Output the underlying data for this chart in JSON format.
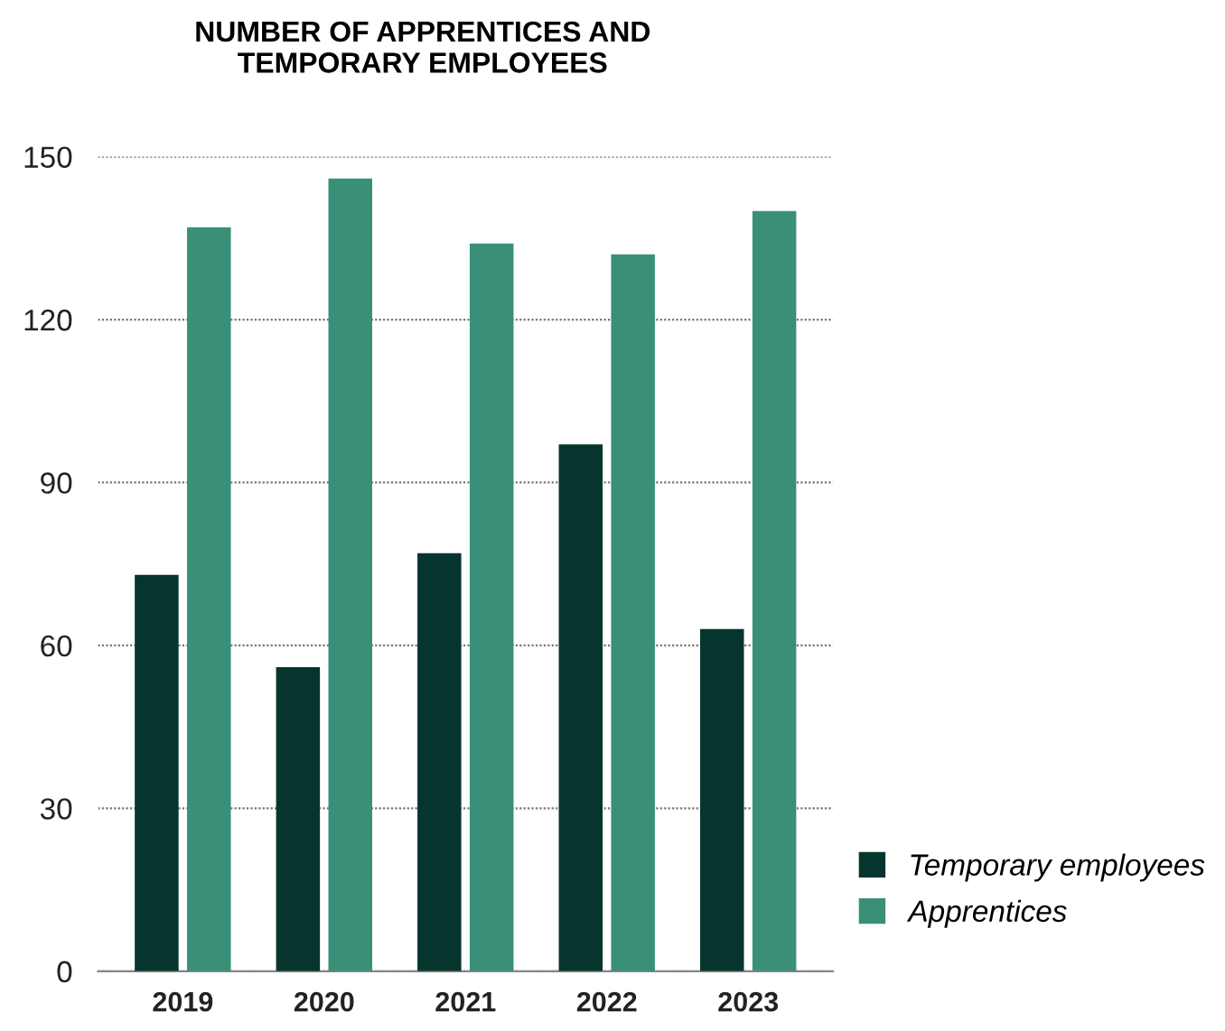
{
  "chart_data": {
    "type": "bar",
    "title": "NUMBER OF APPRENTICES AND\nTEMPORARY EMPLOYEES",
    "categories": [
      "2019",
      "2020",
      "2021",
      "2022",
      "2023"
    ],
    "series": [
      {
        "name": "Temporary employees",
        "color": "#06352e",
        "values": [
          73,
          56,
          77,
          97,
          63
        ]
      },
      {
        "name": "Apprentices",
        "color": "#3a8f78",
        "values": [
          137,
          146,
          134,
          132,
          140
        ]
      }
    ],
    "ylim": [
      0,
      150
    ],
    "yticks": [
      0,
      30,
      60,
      90,
      120,
      150
    ],
    "grid": "y",
    "legend": "bottom right"
  }
}
